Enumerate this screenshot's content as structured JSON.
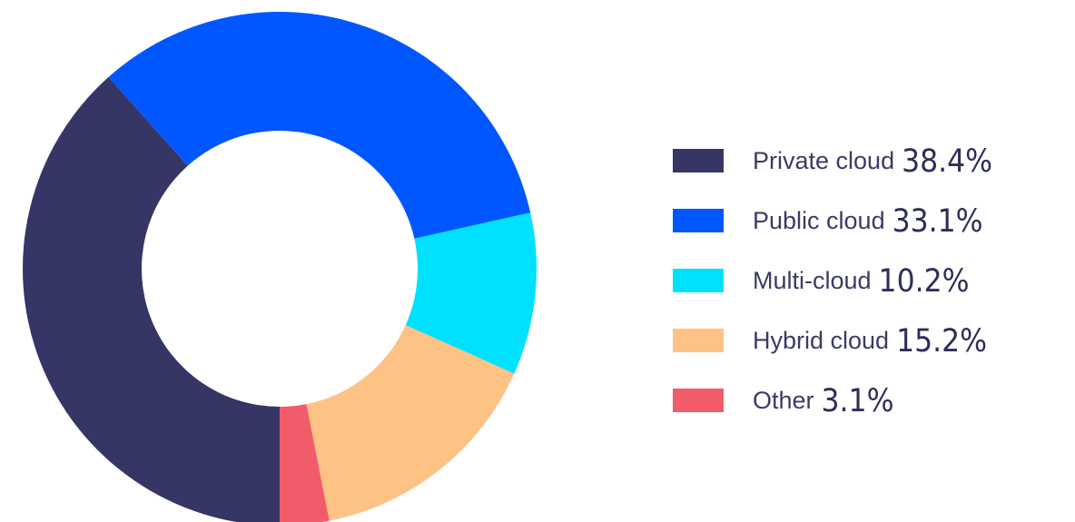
{
  "chart_data": {
    "type": "donut",
    "categories": [
      "Private cloud",
      "Public cloud",
      "Multi-cloud",
      "Hybrid cloud",
      "Other"
    ],
    "values": [
      38.4,
      33.1,
      10.2,
      15.2,
      3.1
    ],
    "value_labels": [
      "38.4%",
      "33.1%",
      "10.2%",
      "15.2%",
      "3.1%"
    ],
    "colors": [
      "#353566",
      "#0057ff",
      "#00e1ff",
      "#ffc285",
      "#f25c6a"
    ],
    "legend": "right"
  }
}
